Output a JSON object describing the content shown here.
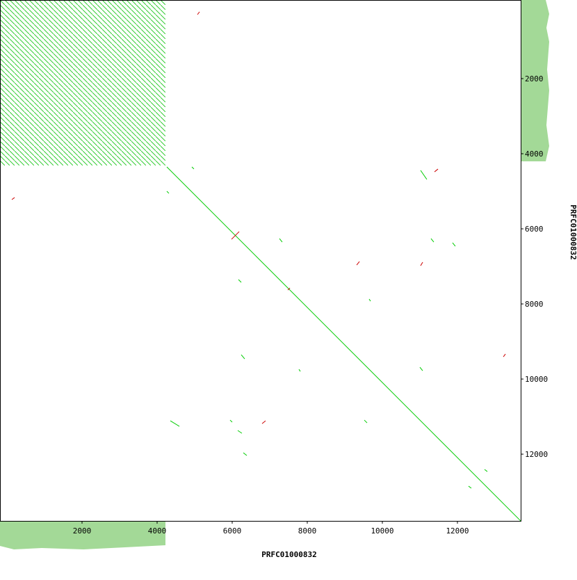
{
  "chart_data": {
    "type": "dotplot",
    "xlabel": "PRFC01000832",
    "ylabel": "PRFC01000832",
    "xlim": [
      -185,
      13685
    ],
    "ylim": [
      -93,
      13777
    ],
    "xticks": [
      2000,
      4000,
      6000,
      8000,
      10000,
      12000
    ],
    "yticks": [
      2000,
      4000,
      6000,
      8000,
      10000,
      12000
    ],
    "series": [
      {
        "color": "#00cc00",
        "segments": [
          [
            4259,
            4352,
            13685,
            13778
          ],
          [
            11019,
            4444,
            11185,
            4685
          ],
          [
            7259,
            6259,
            7333,
            6352
          ],
          [
            11296,
            6259,
            11370,
            6352
          ],
          [
            11870,
            6370,
            11944,
            6463
          ],
          [
            6167,
            7352,
            6241,
            7426
          ],
          [
            6241,
            9352,
            6333,
            9463
          ],
          [
            11000,
            9685,
            11074,
            9778
          ],
          [
            4352,
            11111,
            4593,
            11259
          ],
          [
            5944,
            11093,
            6000,
            11148
          ],
          [
            6148,
            11370,
            6259,
            11444
          ],
          [
            6296,
            11963,
            6389,
            12037
          ],
          [
            9519,
            11093,
            9593,
            11167
          ],
          [
            4926,
            4352,
            4981,
            4407
          ],
          [
            4259,
            5000,
            4315,
            5056
          ],
          [
            12722,
            12407,
            12796,
            12463
          ],
          [
            12296,
            12852,
            12370,
            12907
          ],
          [
            9648,
            7870,
            9685,
            7926
          ],
          [
            7778,
            9741,
            7815,
            9797
          ]
        ]
      },
      {
        "color": "#cc0000",
        "segments": [
          [
            5130,
            222,
            5074,
            296
          ],
          [
            204,
            5167,
            130,
            5222
          ],
          [
            11482,
            4408,
            11390,
            4482
          ],
          [
            9390,
            6871,
            9316,
            6964
          ],
          [
            11075,
            6889,
            11019,
            6982
          ],
          [
            6186,
            6075,
            5982,
            6278
          ],
          [
            6889,
            11112,
            6797,
            11186
          ],
          [
            13279,
            9334,
            13223,
            9408
          ],
          [
            7538,
            7575,
            7482,
            7630
          ]
        ]
      }
    ]
  }
}
